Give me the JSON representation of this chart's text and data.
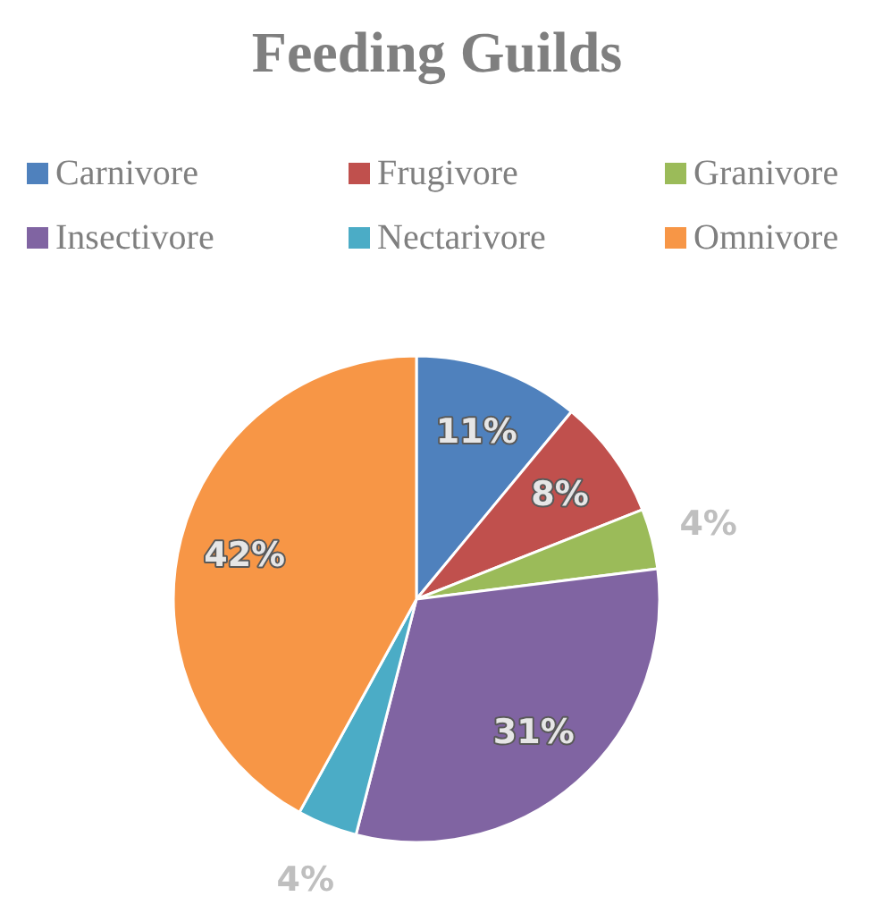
{
  "chart_data": {
    "type": "pie",
    "title": "Feeding Guilds",
    "categories": [
      "Carnivore",
      "Frugivore",
      "Granivore",
      "Insectivore",
      "Nectarivore",
      "Omnivore"
    ],
    "values": [
      11,
      8,
      4,
      31,
      4,
      42
    ],
    "colors": [
      "#4f81bd",
      "#c0504d",
      "#9bbb59",
      "#8064a2",
      "#4bacc6",
      "#f79646"
    ],
    "value_labels": [
      "11%",
      "8%",
      "4%",
      "31%",
      "4%",
      "42%"
    ],
    "legend": "top"
  }
}
